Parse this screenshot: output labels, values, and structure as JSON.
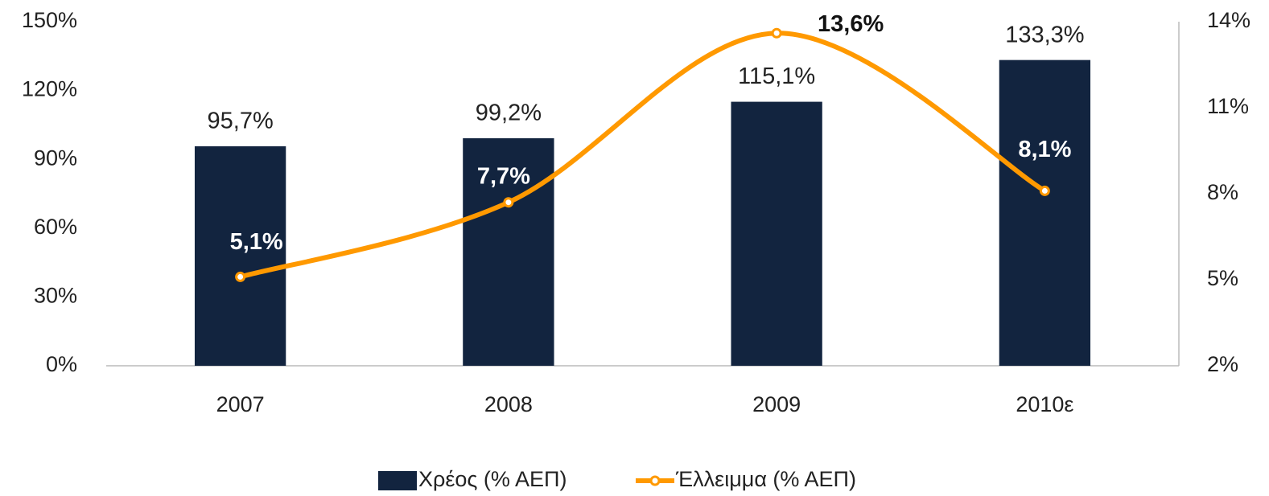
{
  "chart_data": {
    "type": "bar-line",
    "categories": [
      "2007",
      "2008",
      "2009",
      "2010ε"
    ],
    "series": [
      {
        "name": "Χρέος (% ΑΕΠ)",
        "color": "#12243f",
        "type": "bar",
        "values": [
          95.7,
          99.2,
          115.1,
          133.3
        ],
        "value_labels": [
          "95,7%",
          "99,2%",
          "115,1%",
          "133,3%"
        ]
      },
      {
        "name": "Έλλειμμα (% ΑΕΠ)",
        "color": "#ff9900",
        "type": "line",
        "axis": "y2",
        "values": [
          5.1,
          7.7,
          13.6,
          8.1
        ],
        "value_labels": [
          "5,1%",
          "7,7%",
          "13,6%",
          "8,1%"
        ]
      }
    ],
    "ylim": [
      0,
      150
    ],
    "yticks": [
      {
        "value": 0,
        "label": "0%"
      },
      {
        "value": 30,
        "label": "30%"
      },
      {
        "value": 60,
        "label": "60%"
      },
      {
        "value": 90,
        "label": "90%"
      },
      {
        "value": 120,
        "label": "120%"
      },
      {
        "value": 150,
        "label": "150%"
      }
    ],
    "y2lim": [
      2,
      14
    ],
    "y2ticks": [
      {
        "value": 2,
        "label": "2%"
      },
      {
        "value": 5,
        "label": "5%"
      },
      {
        "value": 8,
        "label": "8%"
      },
      {
        "value": 11,
        "label": "11%"
      },
      {
        "value": 14,
        "label": "14%"
      }
    ],
    "legend": "bottom"
  }
}
